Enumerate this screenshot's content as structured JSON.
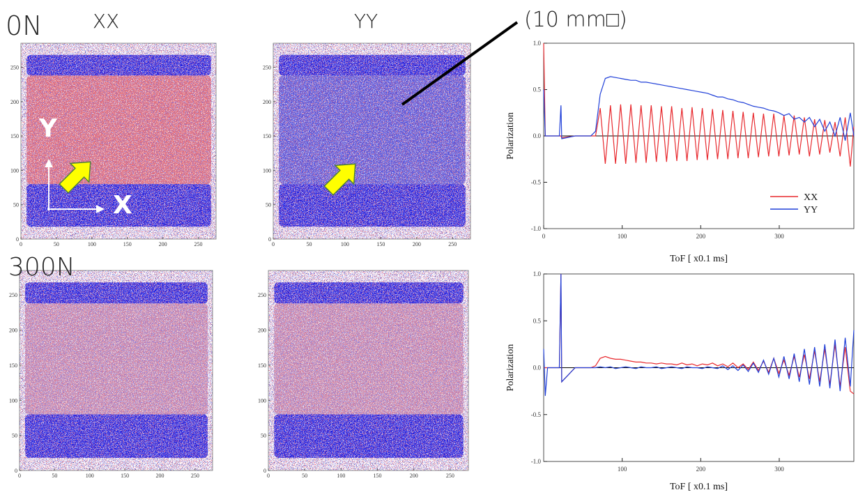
{
  "annotations": {
    "load_top": "0N",
    "load_bottom": "300N",
    "size_note": "(10 mm□)",
    "axis_x": "X",
    "axis_y": "Y"
  },
  "chart_data": [
    {
      "type": "map",
      "title": "XX",
      "xlim": [
        0,
        275
      ],
      "ylim": [
        0,
        285
      ],
      "xticks": [
        0,
        50,
        100,
        150,
        200,
        250
      ],
      "yticks": [
        0,
        50,
        100,
        150,
        200,
        250
      ],
      "regions": [
        {
          "x": [
            8,
            268
          ],
          "y": [
            238,
            268
          ],
          "color": "#1c1ce0"
        },
        {
          "x": [
            8,
            268
          ],
          "y": [
            80,
            238
          ],
          "color": "#e0707a"
        },
        {
          "x": [
            8,
            268
          ],
          "y": [
            18,
            80
          ],
          "color": "#1c1ce0"
        }
      ]
    },
    {
      "type": "map",
      "title": "YY",
      "xlim": [
        0,
        275
      ],
      "ylim": [
        0,
        285
      ],
      "xticks": [
        0,
        50,
        100,
        150,
        200,
        250
      ],
      "yticks": [
        0,
        50,
        100,
        150,
        200,
        250
      ],
      "regions": [
        {
          "x": [
            8,
            268
          ],
          "y": [
            238,
            268
          ],
          "color": "#1c1ce0"
        },
        {
          "x": [
            8,
            268
          ],
          "y": [
            80,
            238
          ],
          "color": "#5454da"
        },
        {
          "x": [
            8,
            268
          ],
          "y": [
            18,
            80
          ],
          "color": "#1c1ce0"
        }
      ]
    },
    {
      "type": "line",
      "xlabel": "ToF [ x0.1 ms]",
      "ylabel": "Polarization",
      "xlim": [
        0,
        395
      ],
      "ylim": [
        -1,
        1
      ],
      "xticks": [
        0,
        100,
        200,
        300
      ],
      "yticks": [
        {
          "value": -1,
          "label": "-1.0"
        },
        -0.5,
        {
          "value": 0,
          "label": "0.0"
        },
        0.5,
        {
          "value": 1,
          "label": "1.0"
        }
      ],
      "legend": "lower right",
      "x": [
        0,
        2,
        5,
        20,
        22,
        23,
        40,
        60,
        66,
        72,
        78.5,
        85,
        91.5,
        98,
        104.5,
        111,
        117.5,
        124,
        130.5,
        137,
        143.5,
        150,
        156.5,
        163,
        169.5,
        176,
        182.5,
        189,
        195.5,
        202,
        208.5,
        215,
        221.5,
        228,
        234.5,
        241,
        247.5,
        254,
        260.5,
        267,
        273.5,
        280,
        286.5,
        293,
        299.5,
        306,
        312.5,
        319,
        325.5,
        332,
        338.5,
        345,
        351.5,
        358,
        364.5,
        371,
        377.5,
        384,
        390.5,
        395
      ],
      "series": [
        {
          "name": "XX",
          "color": "#e8282d",
          "values": [
            1.0,
            0.0,
            0.0,
            0.0,
            0.0,
            -0.02,
            0.0,
            0.0,
            0.0,
            0.3,
            -0.3,
            0.33,
            -0.3,
            0.34,
            -0.3,
            0.34,
            -0.29,
            0.33,
            -0.29,
            0.33,
            -0.28,
            0.32,
            -0.28,
            0.32,
            -0.27,
            0.3,
            -0.27,
            0.31,
            -0.26,
            0.3,
            -0.26,
            0.29,
            -0.25,
            0.28,
            -0.25,
            0.27,
            -0.24,
            0.26,
            -0.24,
            0.25,
            -0.23,
            0.24,
            -0.22,
            0.24,
            -0.22,
            0.22,
            -0.21,
            0.22,
            -0.2,
            0.2,
            -0.22,
            0.18,
            -0.2,
            0.17,
            -0.18,
            0.15,
            -0.22,
            0.2,
            -0.33,
            0.1
          ]
        },
        {
          "name": "YY",
          "color": "#1f3fd8",
          "values": [
            0.5,
            0.0,
            0.0,
            0.0,
            0.33,
            -0.03,
            0.0,
            0.0,
            0.05,
            0.45,
            0.62,
            0.64,
            0.63,
            0.62,
            0.61,
            0.6,
            0.6,
            0.58,
            0.58,
            0.57,
            0.56,
            0.55,
            0.54,
            0.53,
            0.52,
            0.51,
            0.5,
            0.49,
            0.48,
            0.47,
            0.46,
            0.44,
            0.42,
            0.42,
            0.4,
            0.39,
            0.37,
            0.36,
            0.34,
            0.32,
            0.31,
            0.3,
            0.28,
            0.27,
            0.25,
            0.22,
            0.24,
            0.18,
            0.2,
            0.15,
            0.2,
            0.1,
            0.18,
            0.05,
            0.15,
            0.0,
            0.2,
            -0.05,
            0.25,
            0.0
          ]
        }
      ]
    },
    {
      "type": "map",
      "xlim": [
        0,
        275
      ],
      "ylim": [
        0,
        285
      ],
      "xticks": [
        0,
        50,
        100,
        150,
        200,
        250
      ],
      "yticks": [
        0,
        50,
        100,
        150,
        200,
        250
      ],
      "regions": [
        {
          "x": [
            8,
            268
          ],
          "y": [
            238,
            268
          ],
          "color": "#1c1ce0"
        },
        {
          "x": [
            8,
            268
          ],
          "y": [
            80,
            238
          ],
          "color": "#c994b4"
        },
        {
          "x": [
            8,
            268
          ],
          "y": [
            18,
            80
          ],
          "color": "#1c1ce0"
        }
      ]
    },
    {
      "type": "map",
      "xlim": [
        0,
        275
      ],
      "ylim": [
        0,
        285
      ],
      "xticks": [
        0,
        50,
        100,
        150,
        200,
        250
      ],
      "yticks": [
        0,
        50,
        100,
        150,
        200,
        250
      ],
      "regions": [
        {
          "x": [
            8,
            268
          ],
          "y": [
            238,
            268
          ],
          "color": "#1c1ce0"
        },
        {
          "x": [
            8,
            268
          ],
          "y": [
            80,
            238
          ],
          "color": "#c994b4"
        },
        {
          "x": [
            8,
            268
          ],
          "y": [
            18,
            80
          ],
          "color": "#1c1ce0"
        }
      ]
    },
    {
      "type": "line",
      "xlabel": "ToF [ x0.1 ms]",
      "ylabel": "Polarization",
      "xlim": [
        0,
        395
      ],
      "ylim": [
        -1,
        1
      ],
      "xticks": [
        100,
        200,
        300
      ],
      "yticks": [
        {
          "value": -1,
          "label": "-1.0"
        },
        -0.5,
        {
          "value": 0,
          "label": "0.0"
        },
        0.5,
        {
          "value": 1,
          "label": "1.0"
        }
      ],
      "x": [
        0,
        2,
        5,
        20,
        22,
        23,
        40,
        60,
        66,
        72,
        78.5,
        85,
        91.5,
        98,
        104.5,
        111,
        117.5,
        124,
        130.5,
        137,
        143.5,
        150,
        156.5,
        163,
        169.5,
        176,
        182.5,
        189,
        195.5,
        202,
        208.5,
        215,
        221.5,
        228,
        234.5,
        241,
        247.5,
        254,
        260.5,
        267,
        273.5,
        280,
        286.5,
        293,
        299.5,
        306,
        312.5,
        319,
        325.5,
        332,
        338.5,
        345,
        351.5,
        358,
        364.5,
        371,
        377.5,
        384,
        390.5,
        395
      ],
      "series": [
        {
          "color": "#e8282d",
          "values": [
            0.0,
            0.0,
            0.0,
            0.0,
            1.0,
            -0.15,
            0.0,
            0.0,
            0.02,
            0.1,
            0.12,
            0.1,
            0.09,
            0.09,
            0.08,
            0.07,
            0.06,
            0.06,
            0.05,
            0.05,
            0.04,
            0.05,
            0.04,
            0.04,
            0.03,
            0.05,
            0.03,
            0.04,
            0.02,
            0.04,
            0.03,
            0.05,
            0.02,
            0.04,
            0.01,
            0.05,
            0.0,
            0.04,
            -0.02,
            0.06,
            -0.03,
            0.07,
            -0.05,
            0.1,
            -0.06,
            0.08,
            -0.08,
            0.12,
            -0.1,
            0.14,
            -0.12,
            0.18,
            -0.15,
            0.2,
            -0.18,
            0.25,
            -0.2,
            0.22,
            -0.25,
            -0.28
          ]
        },
        {
          "color": "#1f3fd8",
          "values": [
            0.2,
            -0.3,
            0.0,
            0.0,
            1.0,
            -0.15,
            0.0,
            0.0,
            0.0,
            0.01,
            0.0,
            0.01,
            -0.01,
            0.0,
            0.01,
            0.0,
            -0.01,
            0.01,
            0.0,
            0.0,
            0.01,
            -0.01,
            0.0,
            0.01,
            0.0,
            -0.01,
            0.01,
            0.0,
            0.0,
            -0.01,
            0.01,
            0.0,
            -0.01,
            0.02,
            -0.02,
            0.02,
            -0.03,
            0.03,
            -0.04,
            0.05,
            -0.05,
            0.08,
            -0.07,
            0.1,
            -0.1,
            0.12,
            -0.12,
            0.15,
            -0.15,
            0.2,
            -0.18,
            0.22,
            -0.2,
            0.25,
            -0.22,
            0.3,
            -0.25,
            0.32,
            -0.2,
            0.4
          ]
        }
      ]
    }
  ]
}
